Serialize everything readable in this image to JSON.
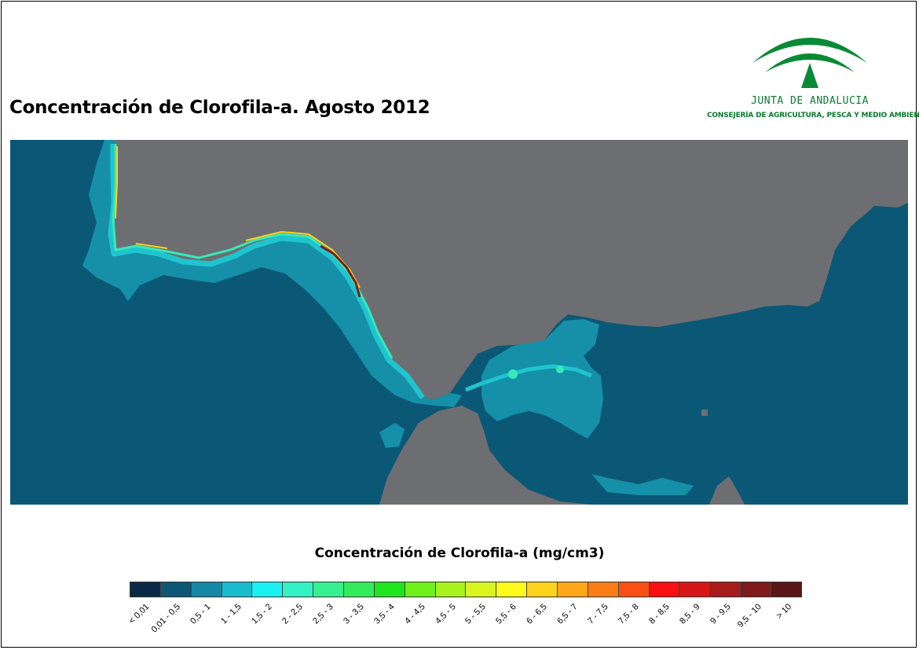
{
  "title": "Concentración de Clorofila-a. Agosto 2012",
  "logo": {
    "name": "JUNTA DE ANDALUCIA",
    "subtitle": "CONSEJERÍA DE AGRICULTURA, PESCA Y MEDIO AMBIENTE",
    "color": "#0a7a2f"
  },
  "map_colors": {
    "land": "#6d6e72",
    "ocean": "#0b5876",
    "shelf": "#1590a8",
    "coast": "#20c4cf",
    "high": "#36e9b8"
  },
  "legend": {
    "title": "Concentración de Clorofila-a (mg/cm3)",
    "classes": [
      {
        "label": "< 0,01",
        "color": "#0b2a48"
      },
      {
        "label": "0,01 - 0,5",
        "color": "#0d5676"
      },
      {
        "label": "0,5 - 1",
        "color": "#1687a5"
      },
      {
        "label": "1 - 1,5",
        "color": "#19bccc"
      },
      {
        "label": "1,5 - 2",
        "color": "#1af0f0"
      },
      {
        "label": "2 - 2,5",
        "color": "#33f2c4"
      },
      {
        "label": "2,5 - 3",
        "color": "#36f08f"
      },
      {
        "label": "3 - 3,5",
        "color": "#33ec5b"
      },
      {
        "label": "3,5 - 4",
        "color": "#1fe51f"
      },
      {
        "label": "4 - 4,5",
        "color": "#6ff21b"
      },
      {
        "label": "4,5 - 5",
        "color": "#a8f21e"
      },
      {
        "label": "5 - 5,5",
        "color": "#d9f520"
      },
      {
        "label": "5,5 - 6",
        "color": "#fdfa1c"
      },
      {
        "label": "6 - 6,5",
        "color": "#fdd21a"
      },
      {
        "label": "6,5 - 7",
        "color": "#fda619"
      },
      {
        "label": "7 - 7,5",
        "color": "#fc7d16"
      },
      {
        "label": "7,5 - 8",
        "color": "#fb5014"
      },
      {
        "label": "8 - 8,5",
        "color": "#f90f0f"
      },
      {
        "label": "8,5 - 9",
        "color": "#d71717"
      },
      {
        "label": "9 - 9,5",
        "color": "#a81b1b"
      },
      {
        "label": "9,5 - 10",
        "color": "#7f1b1b"
      },
      {
        "label": "> 10",
        "color": "#5a1616"
      }
    ]
  }
}
